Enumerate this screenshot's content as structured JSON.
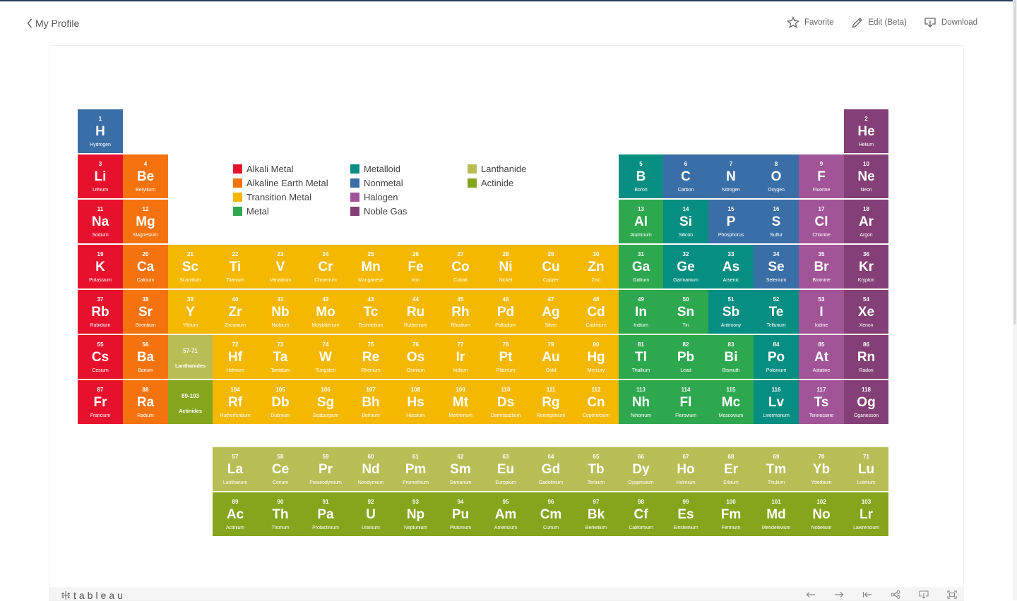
{
  "header": {
    "back_label": "My Profile",
    "favorite_label": "Favorite",
    "edit_label": "Edit (Beta)",
    "download_label": "Download"
  },
  "footer": {
    "logo_text": "tableau"
  },
  "colors": {
    "alkali": "#e8112d",
    "alkaline": "#f5730f",
    "transition": "#f5b800",
    "metal": "#2ea84f",
    "metalloid": "#078e82",
    "nonmetal": "#3a6ea6",
    "halogen": "#a25498",
    "noble": "#833f76",
    "lanthanide": "#b9bd55",
    "actinide": "#84a51c"
  },
  "legend": [
    {
      "label": "Alkali Metal",
      "cat": "alkali"
    },
    {
      "label": "Alkaline Earth Metal",
      "cat": "alkaline"
    },
    {
      "label": "Transition Metal",
      "cat": "transition"
    },
    {
      "label": "Metal",
      "cat": "metal"
    },
    {
      "label": "Metalloid",
      "cat": "metalloid"
    },
    {
      "label": "Nonmetal",
      "cat": "nonmetal"
    },
    {
      "label": "Halogen",
      "cat": "halogen"
    },
    {
      "label": "Noble Gas",
      "cat": "noble"
    },
    {
      "label": "Lanthanide",
      "cat": "lanthanide"
    },
    {
      "label": "Actinide",
      "cat": "actinide"
    }
  ],
  "elements": [
    {
      "n": "1",
      "s": "H",
      "name": "Hydrogen",
      "cat": "nonmetal",
      "row": 1,
      "col": 1
    },
    {
      "n": "2",
      "s": "He",
      "name": "Helium",
      "cat": "noble",
      "row": 1,
      "col": 18
    },
    {
      "n": "3",
      "s": "Li",
      "name": "Lithium",
      "cat": "alkali",
      "row": 2,
      "col": 1
    },
    {
      "n": "4",
      "s": "Be",
      "name": "Beryllium",
      "cat": "alkaline",
      "row": 2,
      "col": 2
    },
    {
      "n": "5",
      "s": "B",
      "name": "Boron",
      "cat": "metalloid",
      "row": 2,
      "col": 13
    },
    {
      "n": "6",
      "s": "C",
      "name": "Carbon",
      "cat": "nonmetal",
      "row": 2,
      "col": 14
    },
    {
      "n": "7",
      "s": "N",
      "name": "Nitrogen",
      "cat": "nonmetal",
      "row": 2,
      "col": 15
    },
    {
      "n": "8",
      "s": "O",
      "name": "Oxygen",
      "cat": "nonmetal",
      "row": 2,
      "col": 16
    },
    {
      "n": "9",
      "s": "F",
      "name": "Fluorine",
      "cat": "halogen",
      "row": 2,
      "col": 17
    },
    {
      "n": "10",
      "s": "Ne",
      "name": "Neon",
      "cat": "noble",
      "row": 2,
      "col": 18
    },
    {
      "n": "11",
      "s": "Na",
      "name": "Sodium",
      "cat": "alkali",
      "row": 3,
      "col": 1
    },
    {
      "n": "12",
      "s": "Mg",
      "name": "Magnesium",
      "cat": "alkaline",
      "row": 3,
      "col": 2
    },
    {
      "n": "13",
      "s": "Al",
      "name": "Aluminum",
      "cat": "metal",
      "row": 3,
      "col": 13
    },
    {
      "n": "14",
      "s": "Si",
      "name": "Silicon",
      "cat": "metalloid",
      "row": 3,
      "col": 14
    },
    {
      "n": "15",
      "s": "P",
      "name": "Phosphorus",
      "cat": "nonmetal",
      "row": 3,
      "col": 15
    },
    {
      "n": "16",
      "s": "S",
      "name": "Sulfur",
      "cat": "nonmetal",
      "row": 3,
      "col": 16
    },
    {
      "n": "17",
      "s": "Cl",
      "name": "Chlorine",
      "cat": "halogen",
      "row": 3,
      "col": 17
    },
    {
      "n": "18",
      "s": "Ar",
      "name": "Argon",
      "cat": "noble",
      "row": 3,
      "col": 18
    },
    {
      "n": "19",
      "s": "K",
      "name": "Potassium",
      "cat": "alkali",
      "row": 4,
      "col": 1
    },
    {
      "n": "20",
      "s": "Ca",
      "name": "Calcium",
      "cat": "alkaline",
      "row": 4,
      "col": 2
    },
    {
      "n": "21",
      "s": "Sc",
      "name": "Scandium",
      "cat": "transition",
      "row": 4,
      "col": 3
    },
    {
      "n": "22",
      "s": "Ti",
      "name": "Titanium",
      "cat": "transition",
      "row": 4,
      "col": 4
    },
    {
      "n": "23",
      "s": "V",
      "name": "Vanadium",
      "cat": "transition",
      "row": 4,
      "col": 5
    },
    {
      "n": "24",
      "s": "Cr",
      "name": "Chromium",
      "cat": "transition",
      "row": 4,
      "col": 6
    },
    {
      "n": "25",
      "s": "Mn",
      "name": "Manganese",
      "cat": "transition",
      "row": 4,
      "col": 7
    },
    {
      "n": "26",
      "s": "Fe",
      "name": "Iron",
      "cat": "transition",
      "row": 4,
      "col": 8
    },
    {
      "n": "27",
      "s": "Co",
      "name": "Cobalt",
      "cat": "transition",
      "row": 4,
      "col": 9
    },
    {
      "n": "28",
      "s": "Ni",
      "name": "Nickel",
      "cat": "transition",
      "row": 4,
      "col": 10
    },
    {
      "n": "29",
      "s": "Cu",
      "name": "Copper",
      "cat": "transition",
      "row": 4,
      "col": 11
    },
    {
      "n": "30",
      "s": "Zn",
      "name": "Zinc",
      "cat": "transition",
      "row": 4,
      "col": 12
    },
    {
      "n": "31",
      "s": "Ga",
      "name": "Gallium",
      "cat": "metal",
      "row": 4,
      "col": 13
    },
    {
      "n": "32",
      "s": "Ge",
      "name": "Garmanium",
      "cat": "metalloid",
      "row": 4,
      "col": 14
    },
    {
      "n": "33",
      "s": "As",
      "name": "Arsenic",
      "cat": "metalloid",
      "row": 4,
      "col": 15
    },
    {
      "n": "34",
      "s": "Se",
      "name": "Selenium",
      "cat": "nonmetal",
      "row": 4,
      "col": 16
    },
    {
      "n": "35",
      "s": "Br",
      "name": "Bromine",
      "cat": "halogen",
      "row": 4,
      "col": 17
    },
    {
      "n": "36",
      "s": "Kr",
      "name": "Krypton",
      "cat": "noble",
      "row": 4,
      "col": 18
    },
    {
      "n": "37",
      "s": "Rb",
      "name": "Rubidium",
      "cat": "alkali",
      "row": 5,
      "col": 1
    },
    {
      "n": "38",
      "s": "Sr",
      "name": "Strontium",
      "cat": "alkaline",
      "row": 5,
      "col": 2
    },
    {
      "n": "39",
      "s": "Y",
      "name": "Yttrium",
      "cat": "transition",
      "row": 5,
      "col": 3
    },
    {
      "n": "40",
      "s": "Zr",
      "name": "Zirconium",
      "cat": "transition",
      "row": 5,
      "col": 4
    },
    {
      "n": "41",
      "s": "Nb",
      "name": "Niobium",
      "cat": "transition",
      "row": 5,
      "col": 5
    },
    {
      "n": "42",
      "s": "Mo",
      "name": "Molybdenum",
      "cat": "transition",
      "row": 5,
      "col": 6
    },
    {
      "n": "43",
      "s": "Tc",
      "name": "Technetium",
      "cat": "transition",
      "row": 5,
      "col": 7
    },
    {
      "n": "44",
      "s": "Ru",
      "name": "Ruthenium",
      "cat": "transition",
      "row": 5,
      "col": 8
    },
    {
      "n": "45",
      "s": "Rh",
      "name": "Rhodium",
      "cat": "transition",
      "row": 5,
      "col": 9
    },
    {
      "n": "46",
      "s": "Pd",
      "name": "Palladium",
      "cat": "transition",
      "row": 5,
      "col": 10
    },
    {
      "n": "47",
      "s": "Ag",
      "name": "Silver",
      "cat": "transition",
      "row": 5,
      "col": 11
    },
    {
      "n": "48",
      "s": "Cd",
      "name": "Cadmium",
      "cat": "transition",
      "row": 5,
      "col": 12
    },
    {
      "n": "49",
      "s": "In",
      "name": "Indium",
      "cat": "metal",
      "row": 5,
      "col": 13
    },
    {
      "n": "50",
      "s": "Sn",
      "name": "Tin",
      "cat": "metal",
      "row": 5,
      "col": 14
    },
    {
      "n": "51",
      "s": "Sb",
      "name": "Antimony",
      "cat": "metalloid",
      "row": 5,
      "col": 15
    },
    {
      "n": "52",
      "s": "Te",
      "name": "Tellurium",
      "cat": "metalloid",
      "row": 5,
      "col": 16
    },
    {
      "n": "53",
      "s": "I",
      "name": "Iodine",
      "cat": "halogen",
      "row": 5,
      "col": 17
    },
    {
      "n": "54",
      "s": "Xe",
      "name": "Xenon",
      "cat": "noble",
      "row": 5,
      "col": 18
    },
    {
      "n": "55",
      "s": "Cs",
      "name": "Cesium",
      "cat": "alkali",
      "row": 6,
      "col": 1
    },
    {
      "n": "56",
      "s": "Ba",
      "name": "Barium",
      "cat": "alkaline",
      "row": 6,
      "col": 2
    },
    {
      "n": "72",
      "s": "Hf",
      "name": "Hafnium",
      "cat": "transition",
      "row": 6,
      "col": 4
    },
    {
      "n": "73",
      "s": "Ta",
      "name": "Tantalum",
      "cat": "transition",
      "row": 6,
      "col": 5
    },
    {
      "n": "74",
      "s": "W",
      "name": "Tungsten",
      "cat": "transition",
      "row": 6,
      "col": 6
    },
    {
      "n": "75",
      "s": "Re",
      "name": "Rhenium",
      "cat": "transition",
      "row": 6,
      "col": 7
    },
    {
      "n": "76",
      "s": "Os",
      "name": "Osmium",
      "cat": "transition",
      "row": 6,
      "col": 8
    },
    {
      "n": "77",
      "s": "Ir",
      "name": "Iridium",
      "cat": "transition",
      "row": 6,
      "col": 9
    },
    {
      "n": "78",
      "s": "Pt",
      "name": "Platinum",
      "cat": "transition",
      "row": 6,
      "col": 10
    },
    {
      "n": "79",
      "s": "Au",
      "name": "Gold",
      "cat": "transition",
      "row": 6,
      "col": 11
    },
    {
      "n": "80",
      "s": "Hg",
      "name": "Mercury",
      "cat": "transition",
      "row": 6,
      "col": 12
    },
    {
      "n": "81",
      "s": "Tl",
      "name": "Thallium",
      "cat": "metal",
      "row": 6,
      "col": 13
    },
    {
      "n": "82",
      "s": "Pb",
      "name": "Lead",
      "cat": "metal",
      "row": 6,
      "col": 14
    },
    {
      "n": "83",
      "s": "Bi",
      "name": "Bismuth",
      "cat": "metal",
      "row": 6,
      "col": 15
    },
    {
      "n": "84",
      "s": "Po",
      "name": "Polonium",
      "cat": "metalloid",
      "row": 6,
      "col": 16
    },
    {
      "n": "85",
      "s": "At",
      "name": "Astatine",
      "cat": "halogen",
      "row": 6,
      "col": 17
    },
    {
      "n": "86",
      "s": "Rn",
      "name": "Radon",
      "cat": "noble",
      "row": 6,
      "col": 18
    },
    {
      "n": "87",
      "s": "Fr",
      "name": "Francium",
      "cat": "alkali",
      "row": 7,
      "col": 1
    },
    {
      "n": "88",
      "s": "Ra",
      "name": "Radium",
      "cat": "alkaline",
      "row": 7,
      "col": 2
    },
    {
      "n": "104",
      "s": "Rf",
      "name": "Rutherfordium",
      "cat": "transition",
      "row": 7,
      "col": 4
    },
    {
      "n": "105",
      "s": "Db",
      "name": "Dubnium",
      "cat": "transition",
      "row": 7,
      "col": 5
    },
    {
      "n": "106",
      "s": "Sg",
      "name": "Seaborgium",
      "cat": "transition",
      "row": 7,
      "col": 6
    },
    {
      "n": "107",
      "s": "Bh",
      "name": "Bohrium",
      "cat": "transition",
      "row": 7,
      "col": 7
    },
    {
      "n": "108",
      "s": "Hs",
      "name": "Hassium",
      "cat": "transition",
      "row": 7,
      "col": 8
    },
    {
      "n": "109",
      "s": "Mt",
      "name": "Meitnerium",
      "cat": "transition",
      "row": 7,
      "col": 9
    },
    {
      "n": "110",
      "s": "Ds",
      "name": "Darmstadtium",
      "cat": "transition",
      "row": 7,
      "col": 10
    },
    {
      "n": "111",
      "s": "Rg",
      "name": "Roentgenium",
      "cat": "transition",
      "row": 7,
      "col": 11
    },
    {
      "n": "112",
      "s": "Cn",
      "name": "Copernicium",
      "cat": "transition",
      "row": 7,
      "col": 12
    },
    {
      "n": "113",
      "s": "Nh",
      "name": "Nihonium",
      "cat": "metal",
      "row": 7,
      "col": 13
    },
    {
      "n": "114",
      "s": "Fl",
      "name": "Flerovium",
      "cat": "metal",
      "row": 7,
      "col": 14
    },
    {
      "n": "115",
      "s": "Mc",
      "name": "Moscovium",
      "cat": "metal",
      "row": 7,
      "col": 15
    },
    {
      "n": "116",
      "s": "Lv",
      "name": "Livermorium",
      "cat": "metalloid",
      "row": 7,
      "col": 16
    },
    {
      "n": "117",
      "s": "Ts",
      "name": "Tennessine",
      "cat": "halogen",
      "row": 7,
      "col": 17
    },
    {
      "n": "118",
      "s": "Og",
      "name": "Oganesson",
      "cat": "noble",
      "row": 7,
      "col": 18
    },
    {
      "n": "57",
      "s": "La",
      "name": "Lanthanum",
      "cat": "lanthanide",
      "row": 9,
      "col": 4
    },
    {
      "n": "58",
      "s": "Ce",
      "name": "Cerium",
      "cat": "lanthanide",
      "row": 9,
      "col": 5
    },
    {
      "n": "59",
      "s": "Pr",
      "name": "Praseodymium",
      "cat": "lanthanide",
      "row": 9,
      "col": 6
    },
    {
      "n": "60",
      "s": "Nd",
      "name": "Neodymium",
      "cat": "lanthanide",
      "row": 9,
      "col": 7
    },
    {
      "n": "61",
      "s": "Pm",
      "name": "Promethium",
      "cat": "lanthanide",
      "row": 9,
      "col": 8
    },
    {
      "n": "62",
      "s": "Sm",
      "name": "Samarium",
      "cat": "lanthanide",
      "row": 9,
      "col": 9
    },
    {
      "n": "63",
      "s": "Eu",
      "name": "Europium",
      "cat": "lanthanide",
      "row": 9,
      "col": 10
    },
    {
      "n": "64",
      "s": "Gd",
      "name": "Gadolinium",
      "cat": "lanthanide",
      "row": 9,
      "col": 11
    },
    {
      "n": "65",
      "s": "Tb",
      "name": "Terbium",
      "cat": "lanthanide",
      "row": 9,
      "col": 12
    },
    {
      "n": "66",
      "s": "Dy",
      "name": "Dysprosium",
      "cat": "lanthanide",
      "row": 9,
      "col": 13
    },
    {
      "n": "67",
      "s": "Ho",
      "name": "Holmium",
      "cat": "lanthanide",
      "row": 9,
      "col": 14
    },
    {
      "n": "68",
      "s": "Er",
      "name": "Erbium",
      "cat": "lanthanide",
      "row": 9,
      "col": 15
    },
    {
      "n": "69",
      "s": "Tm",
      "name": "Thulium",
      "cat": "lanthanide",
      "row": 9,
      "col": 16
    },
    {
      "n": "70",
      "s": "Yb",
      "name": "Ytterbium",
      "cat": "lanthanide",
      "row": 9,
      "col": 17
    },
    {
      "n": "71",
      "s": "Lu",
      "name": "Lutetium",
      "cat": "lanthanide",
      "row": 9,
      "col": 18
    },
    {
      "n": "89",
      "s": "Ac",
      "name": "Actinium",
      "cat": "actinide",
      "row": 10,
      "col": 4
    },
    {
      "n": "90",
      "s": "Th",
      "name": "Thorium",
      "cat": "actinide",
      "row": 10,
      "col": 5
    },
    {
      "n": "91",
      "s": "Pa",
      "name": "Protactinium",
      "cat": "actinide",
      "row": 10,
      "col": 6
    },
    {
      "n": "92",
      "s": "U",
      "name": "Uranium",
      "cat": "actinide",
      "row": 10,
      "col": 7
    },
    {
      "n": "93",
      "s": "Np",
      "name": "Neptunium",
      "cat": "actinide",
      "row": 10,
      "col": 8
    },
    {
      "n": "94",
      "s": "Pu",
      "name": "Plutonium",
      "cat": "actinide",
      "row": 10,
      "col": 9
    },
    {
      "n": "95",
      "s": "Am",
      "name": "Americium",
      "cat": "actinide",
      "row": 10,
      "col": 10
    },
    {
      "n": "96",
      "s": "Cm",
      "name": "Curium",
      "cat": "actinide",
      "row": 10,
      "col": 11
    },
    {
      "n": "97",
      "s": "Bk",
      "name": "Berkelium",
      "cat": "actinide",
      "row": 10,
      "col": 12
    },
    {
      "n": "98",
      "s": "Cf",
      "name": "Californium",
      "cat": "actinide",
      "row": 10,
      "col": 13
    },
    {
      "n": "99",
      "s": "Es",
      "name": "Einsteinium",
      "cat": "actinide",
      "row": 10,
      "col": 14
    },
    {
      "n": "100",
      "s": "Fm",
      "name": "Fermium",
      "cat": "actinide",
      "row": 10,
      "col": 15
    },
    {
      "n": "101",
      "s": "Md",
      "name": "Mendelevium",
      "cat": "actinide",
      "row": 10,
      "col": 16
    },
    {
      "n": "102",
      "s": "No",
      "name": "Nobelium",
      "cat": "actinide",
      "row": 10,
      "col": 17
    },
    {
      "n": "103",
      "s": "Lr",
      "name": "Lawrencium",
      "cat": "actinide",
      "row": 10,
      "col": 18
    }
  ],
  "placeholders": [
    {
      "range": "57-71",
      "label": "Lanthanides",
      "cat": "lanthanide",
      "row": 6,
      "col": 3
    },
    {
      "range": "89-103",
      "label": "Actinides",
      "cat": "actinide",
      "row": 7,
      "col": 3
    }
  ]
}
